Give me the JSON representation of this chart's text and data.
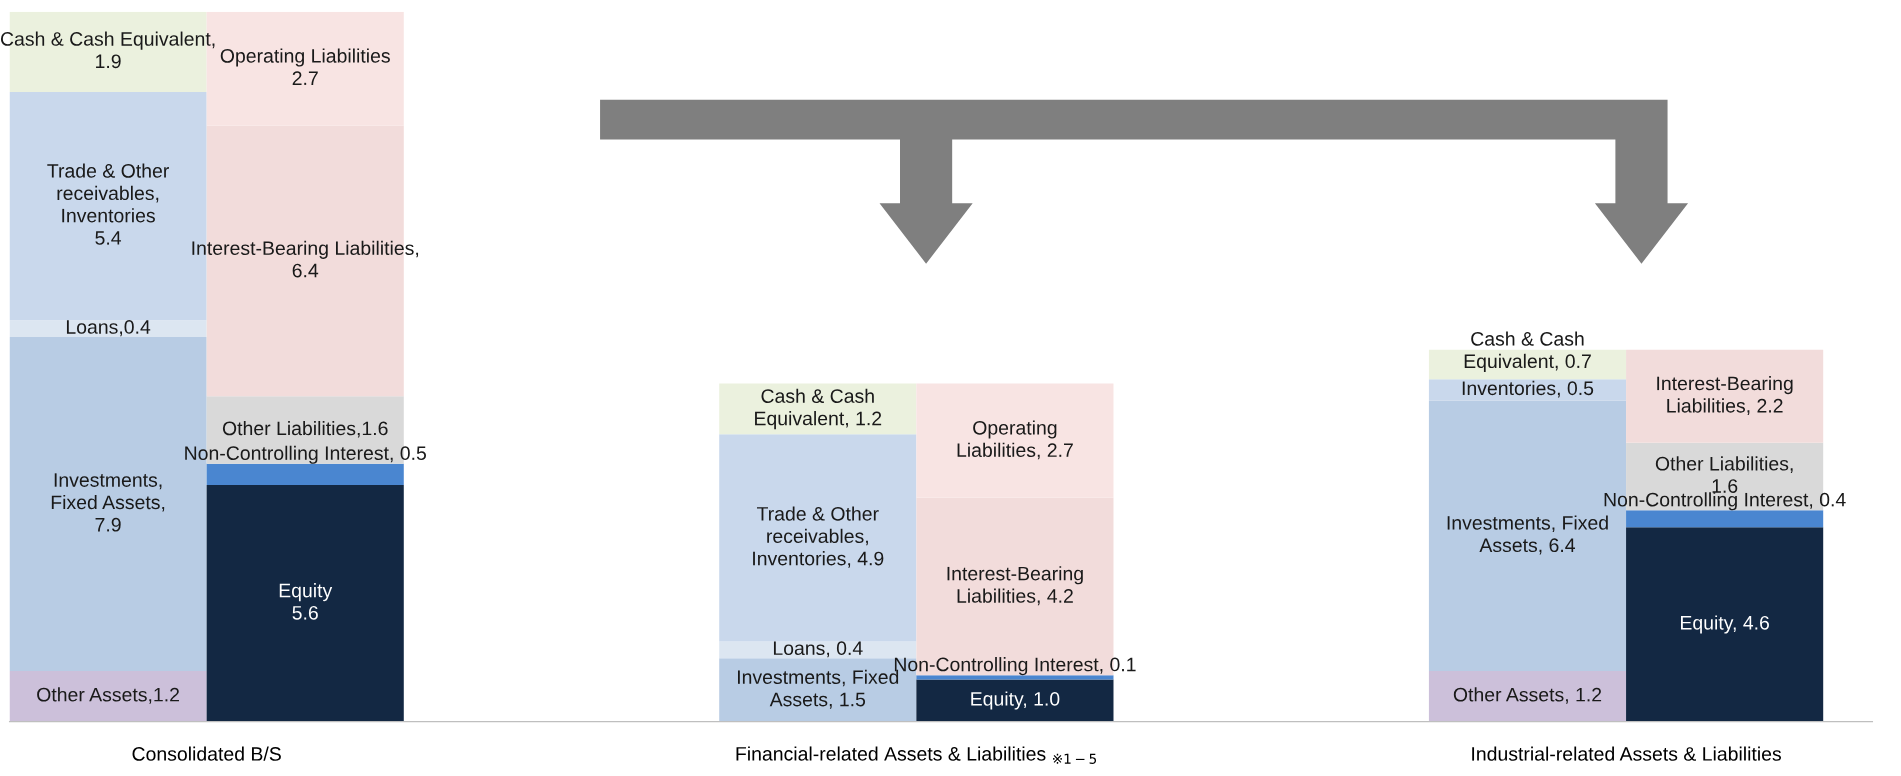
{
  "chart_data": {
    "type": "bar",
    "stacked": true,
    "legend": false,
    "grid": false,
    "categories": [
      null,
      null,
      null,
      null,
      null,
      null
    ],
    "annotations": [
      "Consolidated B/S",
      "Financial-related Assets & Liabilities $_{※1−5}$",
      "Industrial-related Assets & Liabilities"
    ],
    "series": [
      {
        "color": "#ccc0da",
        "values": [
          1.2,
          null,
          null,
          null,
          1.2,
          null
        ],
        "value_labels": [
          "Other Assets,1.2",
          null,
          null,
          null,
          "Other Assets, 1.2",
          null
        ]
      },
      {
        "color": "#b8cce4",
        "values": [
          7.9,
          null,
          1.5,
          null,
          6.4,
          null
        ],
        "value_labels": [
          "Investments,\nFixed Assets,\n7.9",
          null,
          "Investments, Fixed\nAssets, 1.5",
          null,
          "Investments, Fixed\nAssets, 6.4",
          null
        ]
      },
      {
        "color": "#dce6f1",
        "values": [
          0.4,
          null,
          0.4,
          null,
          null,
          null
        ],
        "value_labels": [
          "Loans,0.4",
          null,
          "Loans, 0.4",
          null,
          null,
          null
        ]
      },
      {
        "color": "#c9d8ec",
        "values": [
          5.4,
          null,
          4.9,
          null,
          0.5,
          null
        ],
        "value_labels": [
          "Trade & Other\nreceivables,\nInventories\n5.4",
          null,
          "Trade & Other\nreceivables,\nInventories, 4.9",
          null,
          "Inventories, 0.5",
          null
        ]
      },
      {
        "color": "#ebf1de",
        "values": [
          1.9,
          null,
          1.2,
          null,
          0.7,
          null
        ],
        "value_labels": [
          "Cash & Cash Equivalent,\n1.9",
          null,
          "Cash & Cash\nEquivalent, 1.2",
          null,
          "Cash & Cash\nEquivalent, 0.7",
          null
        ]
      },
      {
        "color": "#132843",
        "values": [
          null,
          5.6,
          null,
          1.0,
          null,
          4.6
        ],
        "value_labels": [
          null,
          "Equity\n5.6",
          null,
          "Equity, 1.0",
          null,
          "Equity, 4.6"
        ]
      },
      {
        "color": "#4a86d0",
        "values": [
          null,
          0.5,
          null,
          0.1,
          null,
          0.4
        ],
        "value_labels": [
          null,
          "Non-Controlling Interest, 0.5",
          null,
          "Non-Controlling Interest, 0.1",
          null,
          "Non-Controlling Interest, 0.4"
        ]
      },
      {
        "color": "#d9d9d9",
        "values": [
          null,
          1.6,
          null,
          null,
          null,
          1.6
        ],
        "value_labels": [
          null,
          "Other Liabilities,1.6",
          null,
          null,
          null,
          "Other Liabilities,\n1.6"
        ]
      },
      {
        "color": "#f2dcdb",
        "values": [
          null,
          6.4,
          null,
          4.2,
          null,
          2.2
        ],
        "value_labels": [
          null,
          "Interest-Bearing Liabilities,\n6.4",
          null,
          "Interest-Bearing\nLiabilities, 4.2",
          null,
          "Interest-Bearing\nLiabilities, 2.2"
        ]
      },
      {
        "color": "#f8e4e3",
        "values": [
          null,
          2.7,
          null,
          2.7,
          null,
          null
        ],
        "value_labels": [
          null,
          "Operating Liabilities\n2.7",
          null,
          "Operating\nLiabilities, 2.7",
          null,
          null
        ]
      }
    ]
  }
}
